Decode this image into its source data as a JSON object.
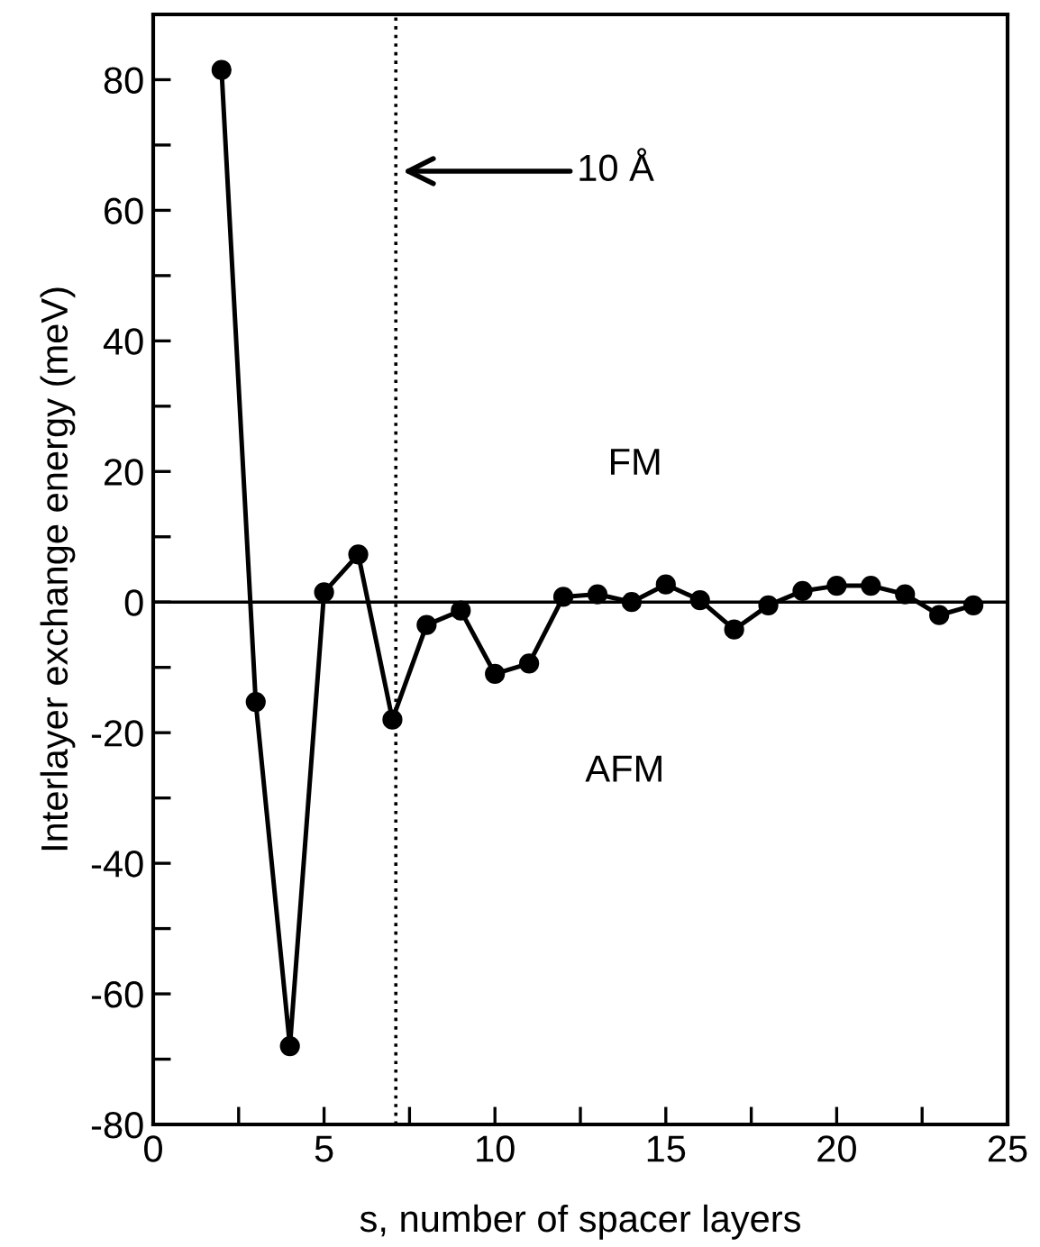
{
  "chart_data": {
    "type": "line",
    "xlabel": "s, number of spacer layers",
    "ylabel": "Interlayer exchange energy (meV)",
    "x": [
      2,
      3,
      4,
      5,
      6,
      7,
      8,
      9,
      10,
      11,
      12,
      13,
      14,
      15,
      16,
      17,
      18,
      19,
      20,
      21,
      22,
      23,
      24
    ],
    "series": [
      {
        "color": "#000000",
        "values": [
          81.5,
          -15.3,
          -68,
          1.5,
          7.3,
          -18,
          -3.5,
          -1.3,
          -11,
          -9.4,
          0.8,
          1.2,
          0,
          2.7,
          0.3,
          -4.2,
          -0.5,
          1.7,
          2.5,
          2.5,
          1.2,
          -2,
          -0.5
        ]
      }
    ],
    "marker": "circle",
    "line_style": "solid",
    "grid": false,
    "xlim": [
      0,
      25
    ],
    "xticks": [
      0,
      {
        "value": 2.5,
        "label": null
      },
      5,
      {
        "value": 7.5,
        "label": null
      },
      10,
      {
        "value": 12.5,
        "label": null
      },
      15,
      {
        "value": 17.5,
        "label": null
      },
      20,
      {
        "value": 22.5,
        "label": null
      },
      25
    ],
    "ylim": [
      -80,
      90
    ],
    "yticks": [
      -80,
      {
        "value": -70,
        "label": null
      },
      -60,
      {
        "value": -50,
        "label": null
      },
      -40,
      {
        "value": -30,
        "label": null
      },
      -20,
      {
        "value": -10,
        "label": null
      },
      0,
      {
        "value": 10,
        "label": null
      },
      20,
      {
        "value": 30,
        "label": null
      },
      40,
      {
        "value": 50,
        "label": null
      },
      60,
      {
        "value": 70,
        "label": null
      },
      80
    ],
    "ref_lines": [
      {
        "axis": "x",
        "value": 7.1,
        "line_style": "dotted",
        "color": "#000000"
      },
      {
        "axis": "y",
        "value": 0,
        "line_style": "solid",
        "color": "#000000"
      }
    ],
    "annotations": [
      "10 Å",
      "FM",
      "AFM"
    ]
  }
}
